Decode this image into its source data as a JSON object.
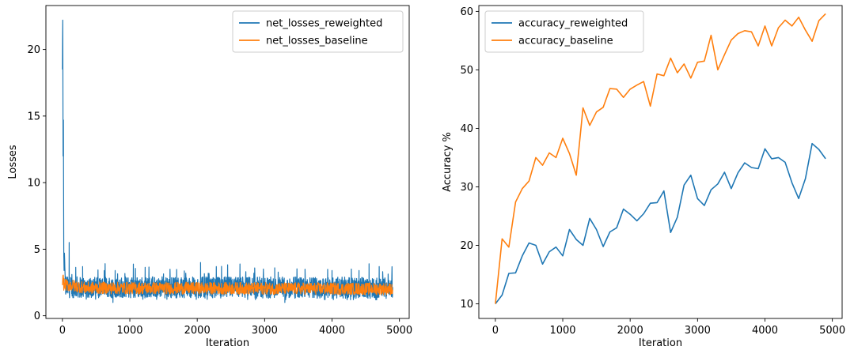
{
  "chart_data": [
    {
      "type": "line",
      "xlabel": "Iteration",
      "ylabel": "Losses",
      "xlim": [
        -245,
        5145
      ],
      "ylim": [
        -0.2,
        23.3
      ],
      "xticks": [
        0,
        1000,
        2000,
        3000,
        4000,
        5000
      ],
      "yticks": [
        0,
        5,
        10,
        15,
        20
      ],
      "legend": "top-right",
      "grid": false,
      "series": [
        {
          "name": "net_losses_reweighted",
          "color": "#1f77b4",
          "description_values": {
            "start_spike_max": 22.2,
            "typical_low": 1.2,
            "typical_high": 3.2
          },
          "x": [
            0,
            5,
            10,
            15,
            20,
            25,
            30,
            40,
            50,
            60,
            80,
            100,
            120,
            140,
            160,
            200,
            250,
            300,
            400,
            500,
            600,
            700,
            750,
            800,
            900,
            1000,
            1100,
            1200,
            1300,
            1400,
            1500,
            1600,
            1700,
            1800,
            1900,
            2000,
            2050,
            2100,
            2200,
            2300,
            2400,
            2500,
            2600,
            2700,
            2800,
            2900,
            3000,
            3100,
            3150,
            3200,
            3300,
            3400,
            3500,
            3600,
            3700,
            3800,
            3900,
            4000,
            4100,
            4200,
            4300,
            4400,
            4500,
            4550,
            4600,
            4700,
            4800,
            4900
          ],
          "values": [
            18.5,
            22.2,
            12.0,
            14.7,
            4.5,
            3.4,
            4.7,
            3.0,
            2.6,
            2.9,
            2.4,
            5.5,
            2.5,
            3.1,
            2.3,
            3.1,
            2.2,
            3.7,
            2.4,
            2.9,
            2.3,
            2.1,
            1.0,
            3.0,
            2.2,
            2.8,
            1.9,
            3.1,
            2.1,
            2.7,
            1.8,
            3.0,
            2.2,
            2.6,
            1.9,
            2.8,
            4.0,
            2.1,
            3.1,
            1.8,
            3.0,
            2.2,
            3.3,
            1.9,
            2.9,
            2.2,
            3.1,
            1.6,
            3.6,
            2.0,
            1.0,
            3.1,
            2.0,
            3.5,
            1.8,
            3.0,
            2.1,
            3.4,
            1.7,
            3.0,
            2.0,
            3.4,
            1.8,
            3.9,
            2.1,
            3.7,
            1.8,
            2.7
          ]
        },
        {
          "name": "net_losses_baseline",
          "color": "#ff7f0e",
          "x": [
            0,
            10,
            20,
            30,
            50,
            100,
            200,
            300,
            500,
            1000,
            1500,
            2000,
            2500,
            3000,
            3500,
            4000,
            4500,
            4900
          ],
          "values": [
            2.3,
            3.2,
            2.5,
            2.8,
            2.4,
            2.5,
            2.3,
            2.2,
            2.1,
            2.0,
            2.1,
            2.0,
            2.0,
            2.0,
            2.0,
            2.0,
            1.9,
            2.0
          ]
        }
      ]
    },
    {
      "type": "line",
      "xlabel": "Iteration",
      "ylabel": "Accuracy %",
      "xlim": [
        -245,
        5145
      ],
      "ylim": [
        7.5,
        61.0
      ],
      "xticks": [
        0,
        1000,
        2000,
        3000,
        4000,
        5000
      ],
      "yticks": [
        10,
        20,
        30,
        40,
        50,
        60
      ],
      "legend": "top-left",
      "grid": false,
      "series": [
        {
          "name": "accuracy_reweighted",
          "color": "#1f77b4",
          "x": [
            0,
            100,
            200,
            300,
            400,
            500,
            600,
            700,
            800,
            900,
            1000,
            1100,
            1200,
            1300,
            1400,
            1500,
            1600,
            1700,
            1800,
            1900,
            2000,
            2100,
            2200,
            2300,
            2400,
            2500,
            2600,
            2700,
            2800,
            2900,
            3000,
            3100,
            3200,
            3300,
            3400,
            3500,
            3600,
            3700,
            3800,
            3900,
            4000,
            4100,
            4200,
            4300,
            4400,
            4500,
            4600,
            4700,
            4800,
            4900
          ],
          "values": [
            10.0,
            11.5,
            15.2,
            15.3,
            18.2,
            20.4,
            20.0,
            16.8,
            18.9,
            19.7,
            18.2,
            22.7,
            21.0,
            20.0,
            24.6,
            22.7,
            19.8,
            22.3,
            23.0,
            26.2,
            25.3,
            24.2,
            25.4,
            27.2,
            27.3,
            29.3,
            22.2,
            24.8,
            30.3,
            32.0,
            28.0,
            26.8,
            29.5,
            30.5,
            32.5,
            29.7,
            32.4,
            34.1,
            33.3,
            33.1,
            36.5,
            34.8,
            35.0,
            34.2,
            30.7,
            28.0,
            31.4,
            37.4,
            36.4,
            34.8
          ]
        },
        {
          "name": "accuracy_baseline",
          "color": "#ff7f0e",
          "x": [
            0,
            100,
            200,
            300,
            400,
            500,
            600,
            700,
            800,
            900,
            1000,
            1100,
            1200,
            1300,
            1400,
            1500,
            1600,
            1700,
            1800,
            1900,
            2000,
            2100,
            2200,
            2300,
            2400,
            2500,
            2600,
            2700,
            2800,
            2900,
            3000,
            3100,
            3200,
            3300,
            3400,
            3500,
            3600,
            3700,
            3800,
            3900,
            4000,
            4100,
            4200,
            4300,
            4400,
            4500,
            4600,
            4700,
            4800,
            4900
          ],
          "values": [
            10.0,
            21.1,
            19.7,
            27.4,
            29.7,
            31.0,
            35.0,
            33.7,
            35.8,
            35.0,
            38.3,
            35.7,
            32.0,
            43.5,
            40.5,
            42.8,
            43.6,
            46.8,
            46.7,
            45.3,
            46.7,
            47.4,
            48.0,
            43.8,
            49.3,
            49.0,
            52.0,
            49.5,
            51.0,
            48.6,
            51.3,
            51.5,
            55.9,
            50.0,
            52.6,
            55.1,
            56.2,
            56.7,
            56.5,
            54.1,
            57.5,
            54.1,
            57.2,
            58.5,
            57.5,
            59.0,
            56.8,
            54.9,
            58.4,
            59.6
          ]
        }
      ]
    }
  ]
}
